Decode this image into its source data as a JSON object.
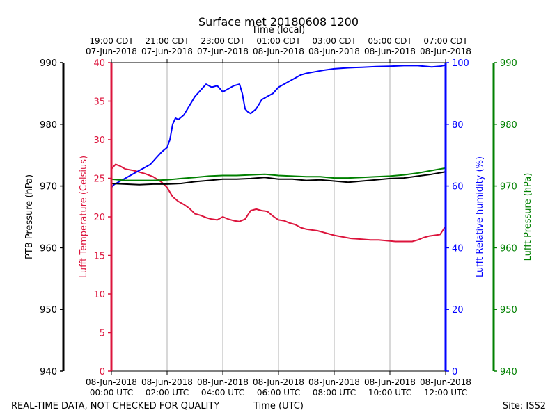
{
  "chart_data": {
    "type": "line",
    "title": "Surface met 20180608 1200",
    "top_axis_label": "Time (local)",
    "xlabel": "Time (UTC)",
    "footer_left": "REAL-TIME DATA, NOT CHECKED FOR QUALITY",
    "footer_right": "Site: ISS2",
    "xlim_hours": [
      0,
      12
    ],
    "x_ticks_utc": [
      {
        "hour": 0,
        "line1": "08-Jun-2018",
        "line2": "00:00 UTC"
      },
      {
        "hour": 2,
        "line1": "08-Jun-2018",
        "line2": "02:00 UTC"
      },
      {
        "hour": 4,
        "line1": "08-Jun-2018",
        "line2": "04:00 UTC"
      },
      {
        "hour": 6,
        "line1": "08-Jun-2018",
        "line2": "06:00 UTC"
      },
      {
        "hour": 8,
        "line1": "08-Jun-2018",
        "line2": "08:00 UTC"
      },
      {
        "hour": 10,
        "line1": "08-Jun-2018",
        "line2": "10:00 UTC"
      },
      {
        "hour": 12,
        "line1": "08-Jun-2018",
        "line2": "12:00 UTC"
      }
    ],
    "x_ticks_local": [
      {
        "hour": 0,
        "line1": "19:00 CDT",
        "line2": "07-Jun-2018"
      },
      {
        "hour": 2,
        "line1": "21:00 CDT",
        "line2": "07-Jun-2018"
      },
      {
        "hour": 4,
        "line1": "23:00 CDT",
        "line2": "07-Jun-2018"
      },
      {
        "hour": 6,
        "line1": "01:00 CDT",
        "line2": "08-Jun-2018"
      },
      {
        "hour": 8,
        "line1": "03:00 CDT",
        "line2": "08-Jun-2018"
      },
      {
        "hour": 10,
        "line1": "05:00 CDT",
        "line2": "08-Jun-2018"
      },
      {
        "hour": 12,
        "line1": "07:00 CDT",
        "line2": "08-Jun-2018"
      }
    ],
    "axes": [
      {
        "id": "ptb",
        "label": "PTB Pressure (hPa)",
        "color": "#000000",
        "range": [
          940,
          990
        ],
        "ticks": [
          940,
          950,
          960,
          970,
          980,
          990
        ]
      },
      {
        "id": "temp",
        "label": "Lufft Temperature (Celsius)",
        "color": "#dc143c",
        "range": [
          0,
          40
        ],
        "ticks": [
          0,
          5,
          10,
          15,
          20,
          25,
          30,
          35,
          40
        ]
      },
      {
        "id": "rh",
        "label": "Lufft Relative humidity (%)",
        "color": "#0000ff",
        "range": [
          0,
          100
        ],
        "ticks": [
          0,
          20,
          40,
          60,
          80,
          100
        ]
      },
      {
        "id": "lp",
        "label": "Lufft Pressure (hPa)",
        "color": "#008000",
        "range": [
          940,
          990
        ],
        "ticks": [
          940,
          950,
          960,
          970,
          980,
          990
        ]
      }
    ],
    "series": [
      {
        "name": "Lufft Temperature",
        "axis": "temp",
        "color": "#dc143c",
        "x": [
          0,
          0.15,
          0.3,
          0.5,
          0.8,
          1.0,
          1.2,
          1.5,
          1.8,
          2.0,
          2.2,
          2.4,
          2.6,
          2.8,
          3.0,
          3.2,
          3.4,
          3.6,
          3.8,
          4.0,
          4.2,
          4.4,
          4.6,
          4.8,
          5.0,
          5.2,
          5.4,
          5.6,
          5.8,
          6.0,
          6.2,
          6.4,
          6.6,
          6.8,
          7.0,
          7.2,
          7.4,
          7.6,
          7.8,
          8.0,
          8.3,
          8.6,
          9.0,
          9.3,
          9.6,
          9.9,
          10.2,
          10.5,
          10.8,
          11.0,
          11.2,
          11.4,
          11.6,
          11.8,
          12.0
        ],
        "values": [
          26.2,
          26.8,
          26.6,
          26.2,
          26.0,
          25.8,
          25.6,
          25.2,
          24.5,
          23.8,
          22.6,
          22.0,
          21.6,
          21.1,
          20.4,
          20.2,
          19.9,
          19.7,
          19.6,
          20.0,
          19.7,
          19.5,
          19.4,
          19.7,
          20.8,
          21.0,
          20.8,
          20.7,
          20.1,
          19.6,
          19.5,
          19.2,
          19.0,
          18.6,
          18.4,
          18.3,
          18.2,
          18.0,
          17.8,
          17.6,
          17.4,
          17.2,
          17.1,
          17.0,
          17.0,
          16.9,
          16.8,
          16.8,
          16.8,
          17.0,
          17.3,
          17.5,
          17.6,
          17.7,
          18.8
        ]
      },
      {
        "name": "Lufft Relative humidity",
        "axis": "rh",
        "color": "#0000ff",
        "x": [
          0,
          0.1,
          0.2,
          0.3,
          0.5,
          0.8,
          1.0,
          1.2,
          1.4,
          1.6,
          1.8,
          2.0,
          2.1,
          2.2,
          2.3,
          2.4,
          2.6,
          2.8,
          3.0,
          3.2,
          3.4,
          3.6,
          3.8,
          4.0,
          4.2,
          4.4,
          4.6,
          4.7,
          4.8,
          4.9,
          5.0,
          5.2,
          5.4,
          5.6,
          5.8,
          6.0,
          6.2,
          6.4,
          6.6,
          6.8,
          7.0,
          7.3,
          7.6,
          8.0,
          8.5,
          9.0,
          9.5,
          10.0,
          10.5,
          11.0,
          11.5,
          11.8,
          12.0
        ],
        "values": [
          59.5,
          60.5,
          61.0,
          61.5,
          62.5,
          64.0,
          65.0,
          66.0,
          67.0,
          69.0,
          71.0,
          72.5,
          75.0,
          80.0,
          82.0,
          81.5,
          83.0,
          86.0,
          89.0,
          91.0,
          93.0,
          92.0,
          92.5,
          90.5,
          91.5,
          92.5,
          93.0,
          90.0,
          85.0,
          84.0,
          83.5,
          85.0,
          88.0,
          89.0,
          90.0,
          92.0,
          93.0,
          94.0,
          95.0,
          96.0,
          96.5,
          97.0,
          97.5,
          98.0,
          98.3,
          98.5,
          98.7,
          98.8,
          99.0,
          99.0,
          98.6,
          98.8,
          99.2
        ]
      },
      {
        "name": "PTB Pressure",
        "axis": "ptb",
        "color": "#000000",
        "x": [
          0,
          0.5,
          1.0,
          1.5,
          2.0,
          2.5,
          3.0,
          3.5,
          4.0,
          4.5,
          5.0,
          5.5,
          6.0,
          6.5,
          7.0,
          7.5,
          8.0,
          8.5,
          9.0,
          9.5,
          10.0,
          10.5,
          11.0,
          11.5,
          12.0
        ],
        "values": [
          970.4,
          970.3,
          970.2,
          970.3,
          970.3,
          970.4,
          970.7,
          970.9,
          971.1,
          971.1,
          971.2,
          971.4,
          971.1,
          971.1,
          970.9,
          971.0,
          970.8,
          970.6,
          970.8,
          971.0,
          971.2,
          971.3,
          971.6,
          971.9,
          972.3
        ]
      },
      {
        "name": "Lufft Pressure",
        "axis": "lp",
        "color": "#008000",
        "x": [
          0,
          0.5,
          1.0,
          1.5,
          2.0,
          2.5,
          3.0,
          3.5,
          4.0,
          4.5,
          5.0,
          5.5,
          6.0,
          6.5,
          7.0,
          7.5,
          8.0,
          8.5,
          9.0,
          9.5,
          10.0,
          10.5,
          11.0,
          11.5,
          12.0
        ],
        "values": [
          971.1,
          970.9,
          970.9,
          970.9,
          971.0,
          971.2,
          971.4,
          971.6,
          971.7,
          971.7,
          971.8,
          971.9,
          971.7,
          971.6,
          971.5,
          971.5,
          971.3,
          971.3,
          971.4,
          971.5,
          971.6,
          971.8,
          972.1,
          972.5,
          972.9
        ]
      }
    ]
  }
}
